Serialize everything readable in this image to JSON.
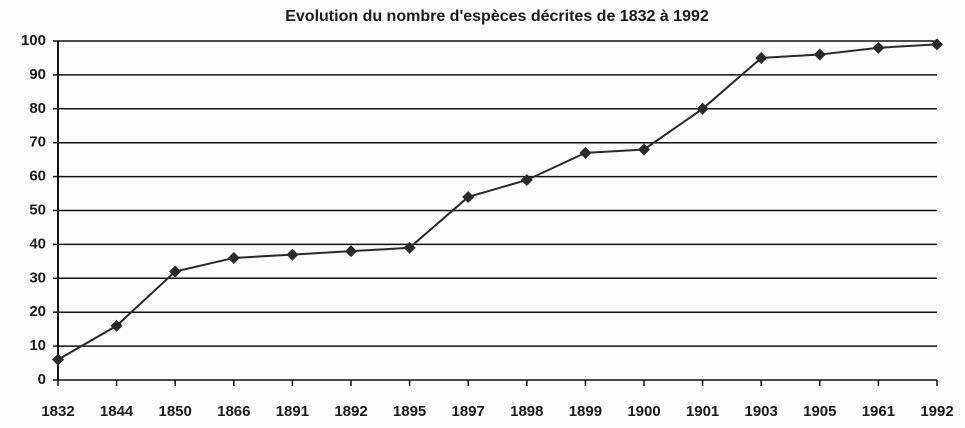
{
  "chart_data": {
    "type": "line",
    "title": "Evolution du nombre d'espèces décrites de 1832 à 1992",
    "categories": [
      "1832",
      "1844",
      "1850",
      "1866",
      "1891",
      "1892",
      "1895",
      "1897",
      "1898",
      "1899",
      "1900",
      "1901",
      "1903",
      "1905",
      "1961",
      "1992"
    ],
    "values": [
      6,
      16,
      32,
      36,
      37,
      38,
      39,
      54,
      59,
      67,
      68,
      80,
      95,
      96,
      98,
      99
    ],
    "color": "#2a2a2a",
    "ylim": [
      0,
      100
    ],
    "yticks": [
      0,
      10,
      20,
      30,
      40,
      50,
      60,
      70,
      80,
      90,
      100
    ],
    "grid": true
  }
}
